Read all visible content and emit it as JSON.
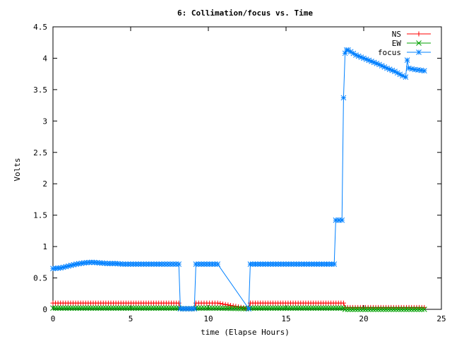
{
  "chart_data": {
    "type": "line",
    "title": "6: Collimation/focus vs. Time",
    "xlabel": "time (Elapse Hours)",
    "ylabel": "Volts",
    "xlim": [
      0,
      25
    ],
    "ylim": [
      0,
      4.5
    ],
    "xticks": [
      0,
      5,
      10,
      15,
      20,
      25
    ],
    "yticks": [
      0,
      0.5,
      1,
      1.5,
      2,
      2.5,
      3,
      3.5,
      4,
      4.5
    ],
    "xtick_labels": [
      "0",
      "5",
      "10",
      "15",
      "20",
      "25"
    ],
    "ytick_labels": [
      "0",
      "0.5",
      "1",
      "1.5",
      "2",
      "2.5",
      "3",
      "3.5",
      "4",
      "4.5"
    ],
    "grid": false,
    "legend_position": "top-right",
    "series": [
      {
        "name": "NS",
        "color": "#ff0000",
        "marker": "plus",
        "points": [
          [
            0,
            0.1
          ],
          [
            8.1,
            0.1
          ],
          [
            8.2,
            0.01
          ],
          [
            9.1,
            0.01
          ],
          [
            9.2,
            0.1
          ],
          [
            10.6,
            0.1
          ],
          [
            12.6,
            0.01
          ],
          [
            12.7,
            0.1
          ],
          [
            18.7,
            0.1
          ],
          [
            18.8,
            0.03
          ],
          [
            23.9,
            0.03
          ]
        ]
      },
      {
        "name": "EW",
        "color": "#00a000",
        "marker": "cross",
        "points": [
          [
            0,
            0.02
          ],
          [
            8.1,
            0.02
          ],
          [
            8.2,
            0.01
          ],
          [
            9.1,
            0.01
          ],
          [
            9.2,
            0.02
          ],
          [
            10.6,
            0.02
          ],
          [
            12.6,
            0.01
          ],
          [
            12.7,
            0.02
          ],
          [
            18.7,
            0.02
          ],
          [
            18.8,
            0.0
          ],
          [
            23.9,
            0.0
          ]
        ]
      },
      {
        "name": "focus",
        "color": "#0080ff",
        "marker": "star",
        "points": [
          [
            0,
            0.65
          ],
          [
            0.5,
            0.66
          ],
          [
            1.0,
            0.69
          ],
          [
            1.5,
            0.72
          ],
          [
            2.0,
            0.74
          ],
          [
            2.5,
            0.75
          ],
          [
            3.0,
            0.74
          ],
          [
            3.5,
            0.73
          ],
          [
            4.0,
            0.73
          ],
          [
            4.5,
            0.72
          ],
          [
            5.0,
            0.72
          ],
          [
            6.0,
            0.72
          ],
          [
            7.0,
            0.72
          ],
          [
            8.1,
            0.72
          ],
          [
            8.2,
            0.01
          ],
          [
            9.1,
            0.01
          ],
          [
            9.2,
            0.72
          ],
          [
            10.6,
            0.72
          ],
          [
            12.6,
            0.01
          ],
          [
            12.7,
            0.72
          ],
          [
            14.0,
            0.72
          ],
          [
            16.0,
            0.72
          ],
          [
            18.1,
            0.72
          ],
          [
            18.2,
            1.42
          ],
          [
            18.6,
            1.42
          ],
          [
            18.7,
            3.37
          ],
          [
            18.8,
            4.08
          ],
          [
            18.9,
            4.13
          ],
          [
            19.0,
            4.13
          ],
          [
            19.5,
            4.05
          ],
          [
            20.0,
            4.0
          ],
          [
            20.5,
            3.95
          ],
          [
            21.0,
            3.9
          ],
          [
            21.5,
            3.84
          ],
          [
            22.0,
            3.79
          ],
          [
            22.5,
            3.72
          ],
          [
            22.7,
            3.7
          ],
          [
            22.8,
            3.97
          ],
          [
            22.9,
            3.84
          ],
          [
            23.3,
            3.82
          ],
          [
            23.9,
            3.8
          ]
        ]
      }
    ]
  }
}
